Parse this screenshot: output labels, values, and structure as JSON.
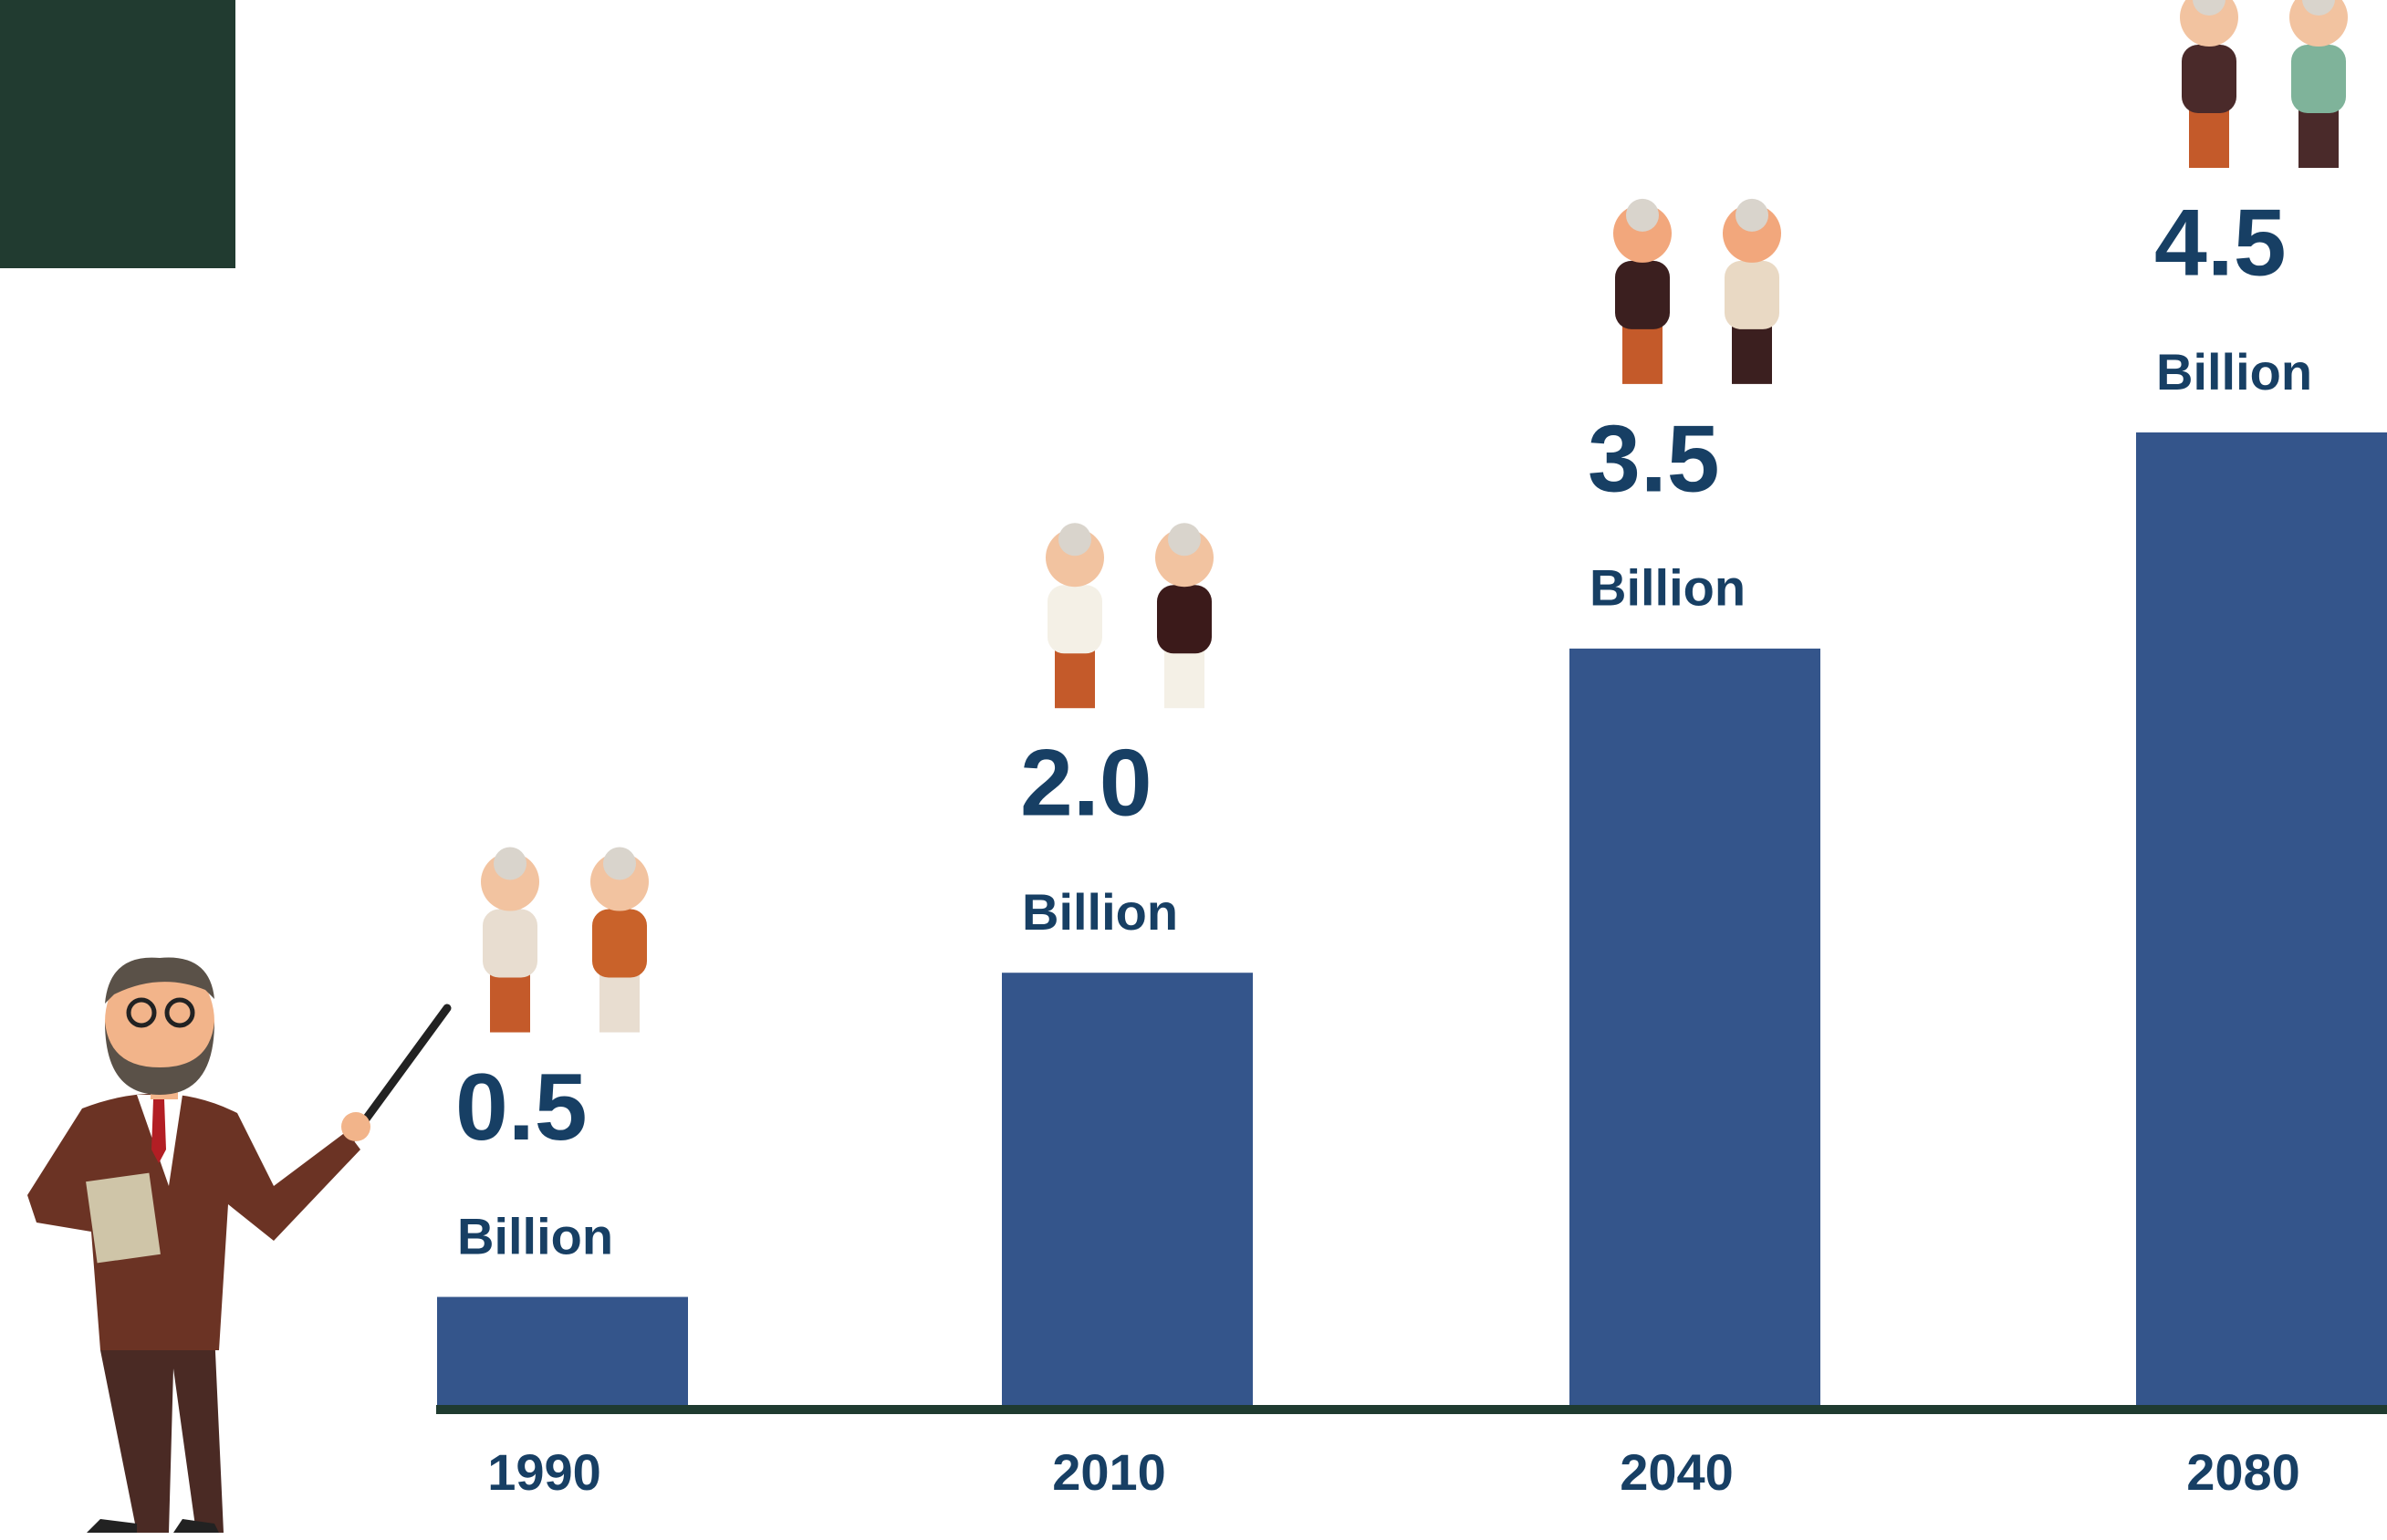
{
  "chart_data": {
    "type": "bar",
    "categories": [
      "1990",
      "2010",
      "2040",
      "2080"
    ],
    "values": [
      0.5,
      2.0,
      3.5,
      4.5
    ],
    "value_labels": [
      "0.5",
      "2.0",
      "3.5",
      "4.5"
    ],
    "unit": "Billion",
    "color": "#34558b"
  }
}
